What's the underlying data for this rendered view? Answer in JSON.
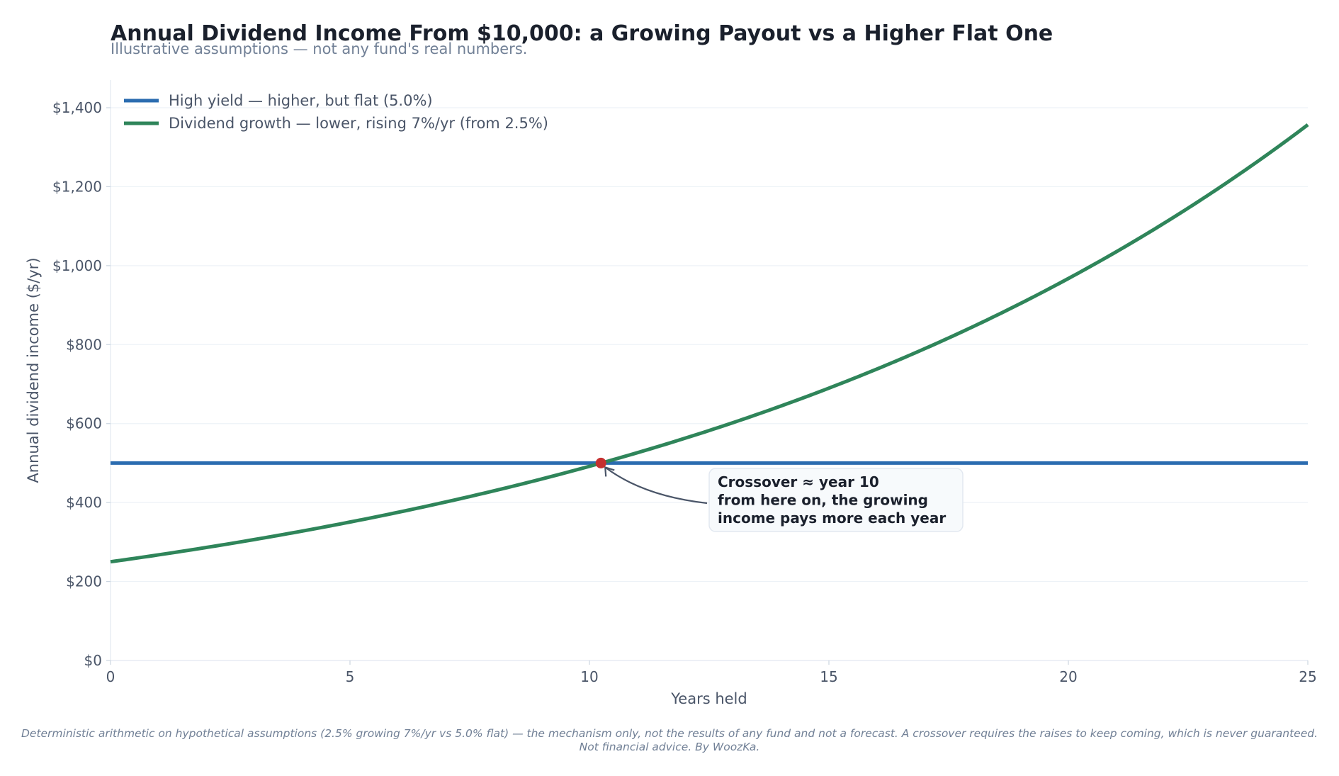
{
  "chart_data": {
    "type": "line",
    "title": "Annual Dividend Income From $10,000: a Growing Payout vs a Higher Flat One",
    "subtitle": "Illustrative assumptions — not any fund's real numbers.",
    "xlabel": "Years held",
    "ylabel": "Annual dividend income ($/yr)",
    "xlim": [
      0,
      25
    ],
    "ylim": [
      0,
      1470
    ],
    "x_ticks": [
      0,
      5,
      10,
      15,
      20,
      25
    ],
    "x_tick_labels": [
      "0",
      "5",
      "10",
      "15",
      "20",
      "25"
    ],
    "y_ticks": [
      0,
      200,
      400,
      600,
      800,
      1000,
      1200,
      1400
    ],
    "y_tick_labels": [
      "$0",
      "$200",
      "$400",
      "$600",
      "$800",
      "$1,000",
      "$1,200",
      "$1,400"
    ],
    "grid": "horizontal",
    "legend_position": "top-left",
    "x": [
      0,
      1,
      2,
      3,
      4,
      5,
      6,
      7,
      8,
      9,
      10,
      11,
      12,
      13,
      14,
      15,
      16,
      17,
      18,
      19,
      20,
      21,
      22,
      23,
      24,
      25
    ],
    "series": [
      {
        "name": "High yield — higher, but flat (5.0%)",
        "color": "#2b6cb0",
        "values": [
          500,
          500,
          500,
          500,
          500,
          500,
          500,
          500,
          500,
          500,
          500,
          500,
          500,
          500,
          500,
          500,
          500,
          500,
          500,
          500,
          500,
          500,
          500,
          500,
          500,
          500
        ]
      },
      {
        "name": "Dividend growth — lower, rising 7%/yr (from 2.5%)",
        "color": "#2f855a",
        "values": [
          250,
          267.5,
          286.2,
          306.3,
          327.7,
          350.6,
          375.2,
          401.5,
          429.5,
          459.6,
          491.8,
          526.2,
          563.0,
          602.4,
          644.6,
          689.8,
          738.0,
          789.7,
          845.0,
          904.1,
          967.4,
          1035.1,
          1107.6,
          1185.1,
          1268.1,
          1356.8
        ]
      }
    ],
    "crossover": {
      "x": 10.24,
      "y": 500,
      "color": "#c53030",
      "annotation_lines": [
        "Crossover ≈ year 10",
        "from here on, the growing",
        "income pays more each year"
      ]
    },
    "footnote_lines": [
      "Deterministic arithmetic on hypothetical assumptions (2.5% growing 7%/yr vs 5.0% flat) — the mechanism only, not the results of any fund and not a forecast. A crossover requires the raises to keep coming, which is never guaranteed.",
      "Not financial advice. By WoozKa."
    ]
  }
}
